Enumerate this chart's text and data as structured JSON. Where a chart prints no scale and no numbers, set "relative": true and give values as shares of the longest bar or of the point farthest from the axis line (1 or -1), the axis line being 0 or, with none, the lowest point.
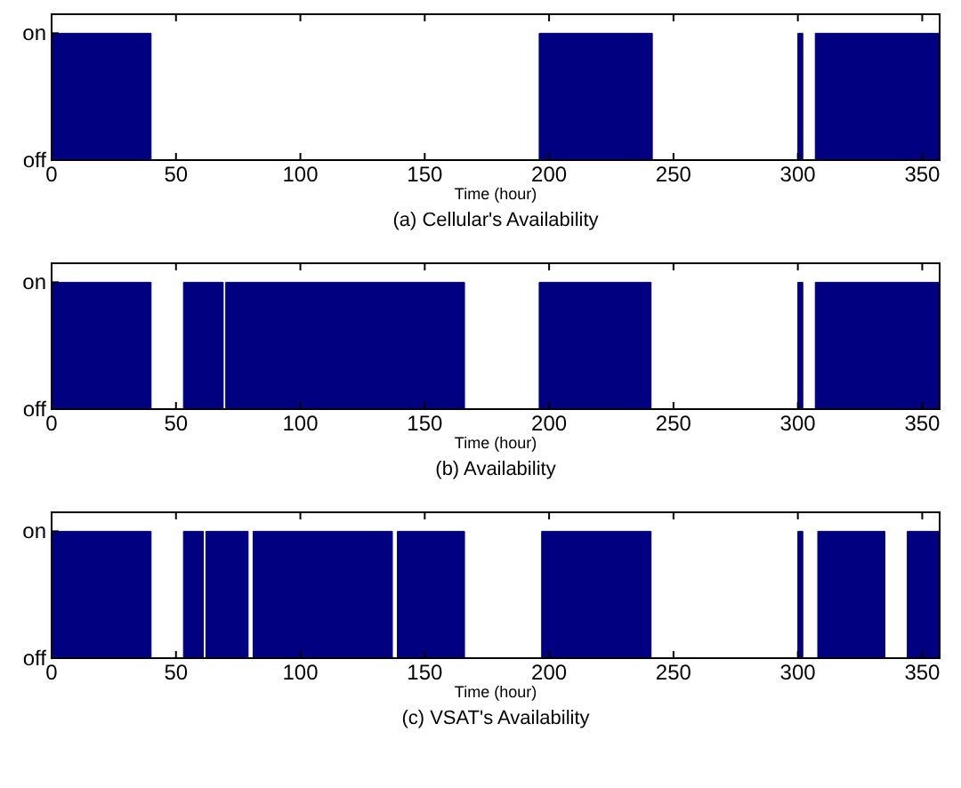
{
  "chart_data": [
    {
      "type": "area",
      "title": "(a) Cellular's Availability",
      "xlabel": "Time (hour)",
      "xlim": [
        0,
        357
      ],
      "xticks": [
        0,
        50,
        100,
        150,
        200,
        250,
        300,
        350
      ],
      "relative": true,
      "annotations": [
        "off",
        "on"
      ],
      "series": [
        {
          "color": "#000080",
          "x": [
            0,
            0,
            40,
            40,
            196,
            196,
            241.5,
            241.5,
            300,
            300,
            302,
            302,
            307,
            307,
            357
          ],
          "values": [
            0,
            1,
            1,
            0,
            0,
            1,
            1,
            0,
            0,
            1,
            1,
            0,
            0,
            1,
            1
          ]
        }
      ]
    },
    {
      "type": "area",
      "title": "(b) Availability",
      "xlabel": "Time (hour)",
      "xlim": [
        0,
        357
      ],
      "xticks": [
        0,
        50,
        100,
        150,
        200,
        250,
        300,
        350
      ],
      "relative": true,
      "annotations": [
        "off",
        "on"
      ],
      "series": [
        {
          "color": "#000080",
          "x": [
            0,
            0,
            40,
            40,
            53,
            53,
            69,
            69,
            70,
            70,
            166,
            166,
            196,
            196,
            241,
            241,
            300,
            300,
            302,
            302,
            307,
            307,
            357
          ],
          "values": [
            0,
            1,
            1,
            0,
            0,
            1,
            1,
            0,
            0,
            1,
            1,
            0,
            0,
            1,
            1,
            0,
            0,
            1,
            1,
            0,
            0,
            1,
            1
          ]
        }
      ]
    },
    {
      "type": "area",
      "title": "(c) VSAT's Availability",
      "xlabel": "Time (hour)",
      "xlim": [
        0,
        357
      ],
      "xticks": [
        0,
        50,
        100,
        150,
        200,
        250,
        300,
        350
      ],
      "relative": true,
      "annotations": [
        "off",
        "on"
      ],
      "series": [
        {
          "color": "#000080",
          "x": [
            0,
            0,
            40,
            40,
            53,
            53,
            61,
            61,
            62,
            62,
            79,
            79,
            81,
            81,
            137,
            137,
            139,
            139,
            166,
            166,
            197,
            197,
            241,
            241,
            300,
            300,
            302,
            302,
            308,
            308,
            335,
            335,
            344,
            344,
            357
          ],
          "values": [
            0,
            1,
            1,
            0,
            0,
            1,
            1,
            0,
            0,
            1,
            1,
            0,
            0,
            1,
            1,
            0,
            0,
            1,
            1,
            0,
            0,
            1,
            1,
            0,
            0,
            1,
            1,
            0,
            0,
            1,
            1,
            0,
            0,
            1,
            1
          ]
        }
      ]
    }
  ]
}
